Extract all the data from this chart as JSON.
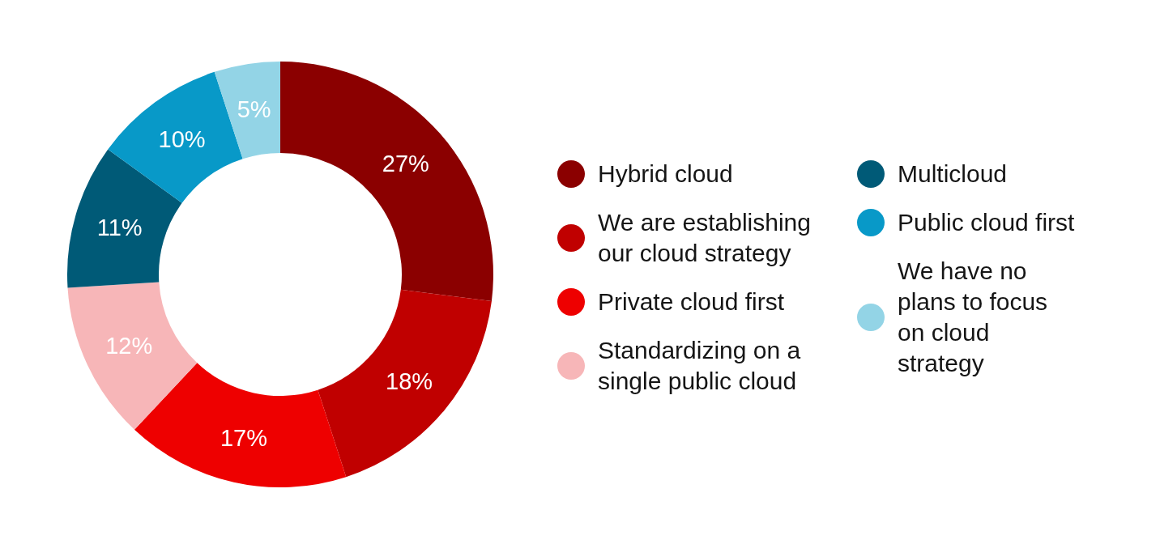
{
  "chart_data": {
    "type": "donut",
    "categories": [
      "Hybrid cloud",
      "We are establishing our cloud strategy",
      "Private cloud first",
      "Standardizing on a single public cloud",
      "Multicloud",
      "Public cloud first",
      "We have no plans to focus on cloud strategy"
    ],
    "values": [
      27,
      18,
      17,
      12,
      11,
      10,
      5
    ],
    "colors": [
      "#8b0000",
      "#c00000",
      "#ee0000",
      "#f7b6b8",
      "#005a77",
      "#0899c8",
      "#93d4e6"
    ],
    "value_labels": [
      "27%",
      "18%",
      "17%",
      "12%",
      "11%",
      "10%",
      "5%"
    ],
    "legend": "right"
  }
}
